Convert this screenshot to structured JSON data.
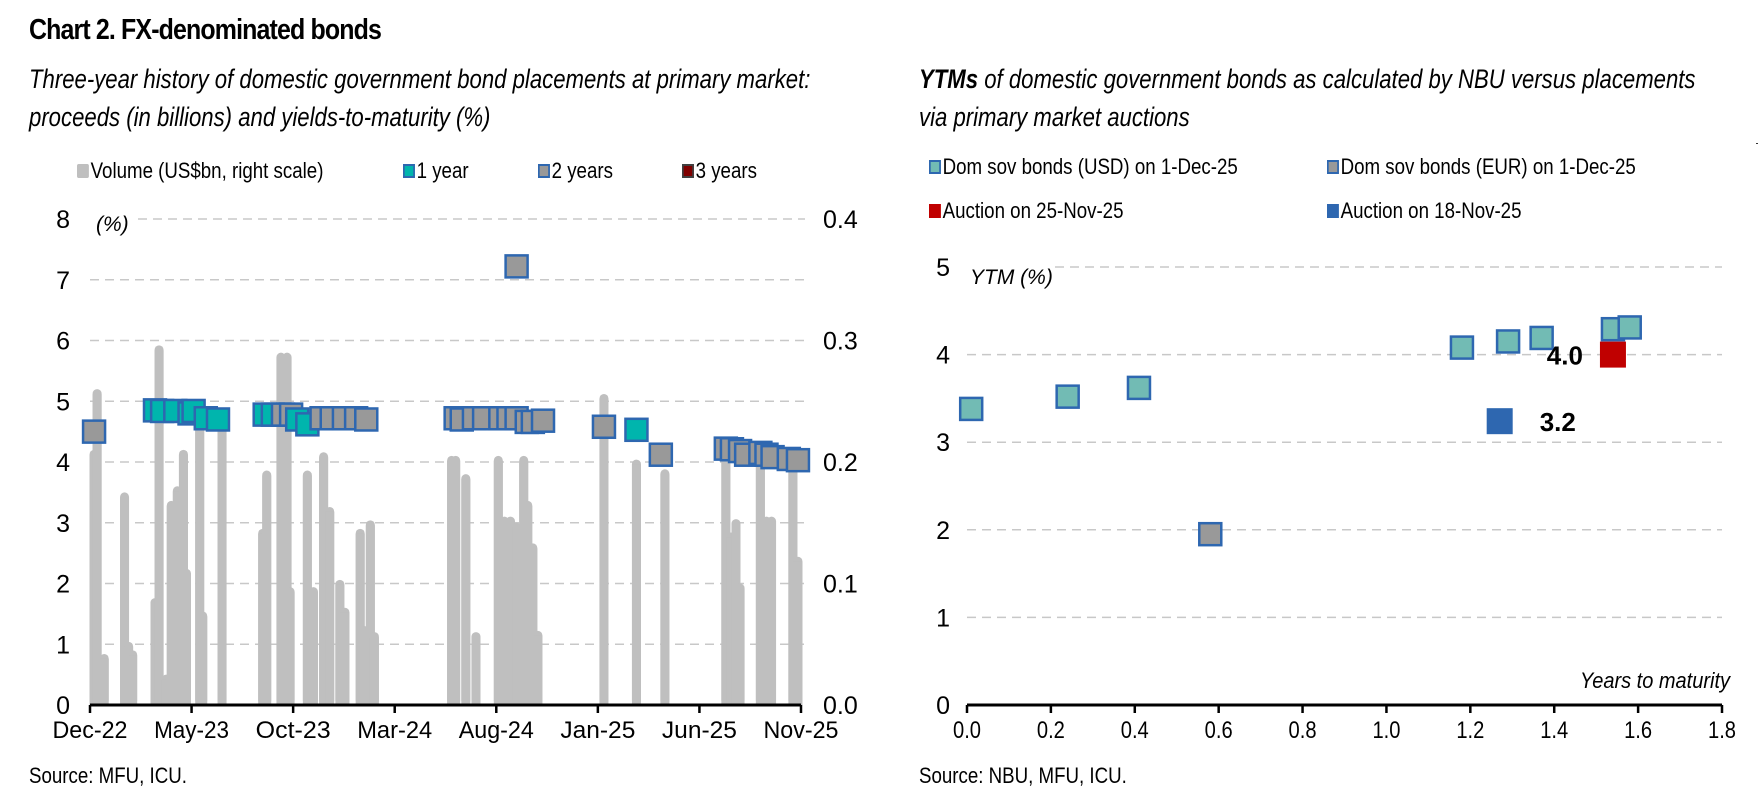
{
  "title": "Chart 2. FX-denominated bonds",
  "left_panel": {
    "subtitle_line1": "Three-year history of domestic government bond placements at primary market:",
    "subtitle_line2": "proceeds (in billions) and yields-to-maturity (%)",
    "source": "Source: MFU, ICU."
  },
  "right_panel": {
    "subtitle_bold": "YTMs",
    "subtitle_line1_rest": " of domestic government bonds as calculated by NBU versus placements",
    "subtitle_line2": "via primary market auctions",
    "source": "Source: NBU, MFU, ICU."
  },
  "colors": {
    "volume": "#bfbfbf",
    "one_year": "#00b5ad",
    "two_years": "#999999",
    "three_years": "#7f0000",
    "marker_border": "#2e67b0",
    "usd": "#72bbb4",
    "eur": "#999999",
    "auction_25nov": "#c00000",
    "auction_18nov": "#2e67b0",
    "grid": "#c8c8c8"
  },
  "chart_data": [
    {
      "type": "bar+scatter",
      "title": "Three-year history of domestic government bond placements at primary market: proceeds (in billions) and yields-to-maturity (%)",
      "ylabel": "(%)",
      "ylabel_right": "",
      "ylim": [
        0,
        8
      ],
      "ylim_right": [
        0,
        0.4
      ],
      "yticks": [
        "0",
        "1",
        "2",
        "3",
        "4",
        "5",
        "6",
        "7",
        "8"
      ],
      "yticks_right": [
        "0.0",
        "0.1",
        "0.2",
        "0.3",
        "0.4"
      ],
      "x_tick_labels": [
        "Dec-22",
        "May-23",
        "Oct-23",
        "Mar-24",
        "Aug-24",
        "Jan-25",
        "Jun-25",
        "Nov-25"
      ],
      "x_range_months": [
        0,
        35
      ],
      "grid": true,
      "legend": [
        {
          "label": "Volume (US$bn, right scale)",
          "key": "volume"
        },
        {
          "label": "1 year",
          "key": "one_year"
        },
        {
          "label": "2 years",
          "key": "two_years"
        },
        {
          "label": "3 years",
          "key": "three_years"
        }
      ],
      "volume_bars": [
        {
          "m": 0.2,
          "v": 0.21
        },
        {
          "m": 0.35,
          "v": 0.26
        },
        {
          "m": 0.7,
          "v": 0.042
        },
        {
          "m": 1.7,
          "v": 0.175
        },
        {
          "m": 1.9,
          "v": 0.052
        },
        {
          "m": 2.1,
          "v": 0.045
        },
        {
          "m": 3.2,
          "v": 0.088
        },
        {
          "m": 3.4,
          "v": 0.296
        },
        {
          "m": 3.75,
          "v": 0.025
        },
        {
          "m": 4.0,
          "v": 0.168
        },
        {
          "m": 4.3,
          "v": 0.18
        },
        {
          "m": 4.6,
          "v": 0.21
        },
        {
          "m": 4.75,
          "v": 0.112
        },
        {
          "m": 5.4,
          "v": 0.24
        },
        {
          "m": 5.55,
          "v": 0.077
        },
        {
          "m": 6.5,
          "v": 0.24
        },
        {
          "m": 8.5,
          "v": 0.145
        },
        {
          "m": 8.7,
          "v": 0.193
        },
        {
          "m": 9.4,
          "v": 0.29
        },
        {
          "m": 9.7,
          "v": 0.29
        },
        {
          "m": 9.85,
          "v": 0.097
        },
        {
          "m": 10.7,
          "v": 0.193
        },
        {
          "m": 11.0,
          "v": 0.097
        },
        {
          "m": 11.5,
          "v": 0.208
        },
        {
          "m": 11.8,
          "v": 0.163
        },
        {
          "m": 12.3,
          "v": 0.103
        },
        {
          "m": 12.55,
          "v": 0.08
        },
        {
          "m": 13.3,
          "v": 0.145
        },
        {
          "m": 13.5,
          "v": 0.065
        },
        {
          "m": 13.8,
          "v": 0.152
        },
        {
          "m": 14.0,
          "v": 0.06
        },
        {
          "m": 17.8,
          "v": 0.205
        },
        {
          "m": 18.0,
          "v": 0.205
        },
        {
          "m": 18.5,
          "v": 0.19
        },
        {
          "m": 19.0,
          "v": 0.06
        },
        {
          "m": 20.1,
          "v": 0.205
        },
        {
          "m": 20.4,
          "v": 0.155
        },
        {
          "m": 20.7,
          "v": 0.155
        },
        {
          "m": 21.0,
          "v": 0.15
        },
        {
          "m": 21.35,
          "v": 0.205
        },
        {
          "m": 21.55,
          "v": 0.168
        },
        {
          "m": 21.8,
          "v": 0.133
        },
        {
          "m": 22.05,
          "v": 0.061
        },
        {
          "m": 25.3,
          "v": 0.256
        },
        {
          "m": 26.9,
          "v": 0.202
        },
        {
          "m": 28.3,
          "v": 0.194
        },
        {
          "m": 31.3,
          "v": 0.208
        },
        {
          "m": 31.55,
          "v": 0.142
        },
        {
          "m": 31.8,
          "v": 0.153
        },
        {
          "m": 32.0,
          "v": 0.1
        },
        {
          "m": 33.0,
          "v": 0.208
        },
        {
          "m": 33.3,
          "v": 0.155
        },
        {
          "m": 33.55,
          "v": 0.155
        },
        {
          "m": 34.6,
          "v": 0.208
        },
        {
          "m": 34.85,
          "v": 0.122
        }
      ],
      "ytm_points": [
        {
          "m": 0.2,
          "y": 4.5,
          "tenor": "2 years"
        },
        {
          "m": 3.2,
          "y": 4.85,
          "tenor": "1 year"
        },
        {
          "m": 3.55,
          "y": 4.84,
          "tenor": "1 year"
        },
        {
          "m": 4.2,
          "y": 4.84,
          "tenor": "1 year"
        },
        {
          "m": 4.9,
          "y": 4.8,
          "tenor": "1 year"
        },
        {
          "m": 5.1,
          "y": 4.84,
          "tenor": "1 year"
        },
        {
          "m": 5.7,
          "y": 4.72,
          "tenor": "1 year"
        },
        {
          "m": 6.3,
          "y": 4.7,
          "tenor": "1 year"
        },
        {
          "m": 8.6,
          "y": 4.78,
          "tenor": "1 year"
        },
        {
          "m": 9.0,
          "y": 4.78,
          "tenor": "1 year"
        },
        {
          "m": 9.5,
          "y": 4.78,
          "tenor": "2 years"
        },
        {
          "m": 9.9,
          "y": 4.78,
          "tenor": "2 years"
        },
        {
          "m": 10.2,
          "y": 4.7,
          "tenor": "1 year"
        },
        {
          "m": 10.7,
          "y": 4.62,
          "tenor": "1 year"
        },
        {
          "m": 11.4,
          "y": 4.72,
          "tenor": "2 years"
        },
        {
          "m": 11.9,
          "y": 4.72,
          "tenor": "2 years"
        },
        {
          "m": 12.5,
          "y": 4.72,
          "tenor": "2 years"
        },
        {
          "m": 13.1,
          "y": 4.72,
          "tenor": "2 years"
        },
        {
          "m": 13.6,
          "y": 4.7,
          "tenor": "2 years"
        },
        {
          "m": 18.0,
          "y": 4.72,
          "tenor": "2 years"
        },
        {
          "m": 18.3,
          "y": 4.7,
          "tenor": "2 years"
        },
        {
          "m": 18.9,
          "y": 4.72,
          "tenor": "2 years"
        },
        {
          "m": 19.4,
          "y": 4.72,
          "tenor": "2 years"
        },
        {
          "m": 20.2,
          "y": 4.72,
          "tenor": "2 years"
        },
        {
          "m": 20.6,
          "y": 4.72,
          "tenor": "2 years"
        },
        {
          "m": 21.0,
          "y": 4.72,
          "tenor": "2 years"
        },
        {
          "m": 21.5,
          "y": 4.66,
          "tenor": "2 years"
        },
        {
          "m": 21.8,
          "y": 4.66,
          "tenor": "2 years"
        },
        {
          "m": 22.3,
          "y": 4.68,
          "tenor": "2 years"
        },
        {
          "m": 21.0,
          "y": 7.22,
          "tenor": "2 years"
        },
        {
          "m": 25.3,
          "y": 4.58,
          "tenor": "2 years"
        },
        {
          "m": 26.9,
          "y": 4.53,
          "tenor": "1 year"
        },
        {
          "m": 28.1,
          "y": 4.12,
          "tenor": "2 years"
        },
        {
          "m": 31.3,
          "y": 4.22,
          "tenor": "2 years"
        },
        {
          "m": 31.6,
          "y": 4.21,
          "tenor": "2 years"
        },
        {
          "m": 32.0,
          "y": 4.18,
          "tenor": "2 years"
        },
        {
          "m": 32.3,
          "y": 4.12,
          "tenor": "2 years"
        },
        {
          "m": 33.0,
          "y": 4.15,
          "tenor": "2 years"
        },
        {
          "m": 33.3,
          "y": 4.12,
          "tenor": "2 years"
        },
        {
          "m": 33.6,
          "y": 4.08,
          "tenor": "2 years"
        },
        {
          "m": 34.4,
          "y": 4.05,
          "tenor": "2 years"
        },
        {
          "m": 34.85,
          "y": 4.03,
          "tenor": "2 years"
        }
      ]
    },
    {
      "type": "scatter",
      "title": "YTMs of domestic government bonds as calculated by NBU versus placements via primary market auctions",
      "ylabel": "YTM (%)",
      "xlabel": "Years to maturity",
      "xlim": [
        0,
        1.8
      ],
      "ylim": [
        0,
        5
      ],
      "xticks": [
        "0.0",
        "0.2",
        "0.4",
        "0.6",
        "0.8",
        "1.0",
        "1.2",
        "1.4",
        "1.6",
        "1.8"
      ],
      "yticks": [
        "0",
        "1",
        "2",
        "3",
        "4",
        "5"
      ],
      "grid": true,
      "legend": [
        {
          "label": "Dom sov bonds (USD) on 1-Dec-25",
          "key": "usd"
        },
        {
          "label": "Dom sov bonds (EUR) on 1-Dec-25",
          "key": "eur"
        },
        {
          "label": "Auction on 25-Nov-25",
          "key": "auction_25nov"
        },
        {
          "label": "Auction on 18-Nov-25",
          "key": "auction_18nov"
        }
      ],
      "series": [
        {
          "name": "Dom sov bonds (USD) on 1-Dec-25",
          "key": "usd",
          "points": [
            [
              0.01,
              3.38
            ],
            [
              0.24,
              3.52
            ],
            [
              0.41,
              3.62
            ],
            [
              1.18,
              4.08
            ],
            [
              1.29,
              4.15
            ],
            [
              1.37,
              4.19
            ],
            [
              1.54,
              4.29
            ],
            [
              1.58,
              4.31
            ]
          ]
        },
        {
          "name": "Dom sov bonds (EUR) on 1-Dec-25",
          "key": "eur",
          "points": [
            [
              0.58,
              1.95
            ]
          ]
        },
        {
          "name": "Auction on 25-Nov-25",
          "key": "auction_25nov",
          "points": [
            [
              1.54,
              4.0
            ]
          ],
          "label": "4.0"
        },
        {
          "name": "Auction on 18-Nov-25",
          "key": "auction_18nov",
          "points": [
            [
              1.27,
              3.24
            ]
          ],
          "label": "3.2"
        }
      ]
    }
  ]
}
